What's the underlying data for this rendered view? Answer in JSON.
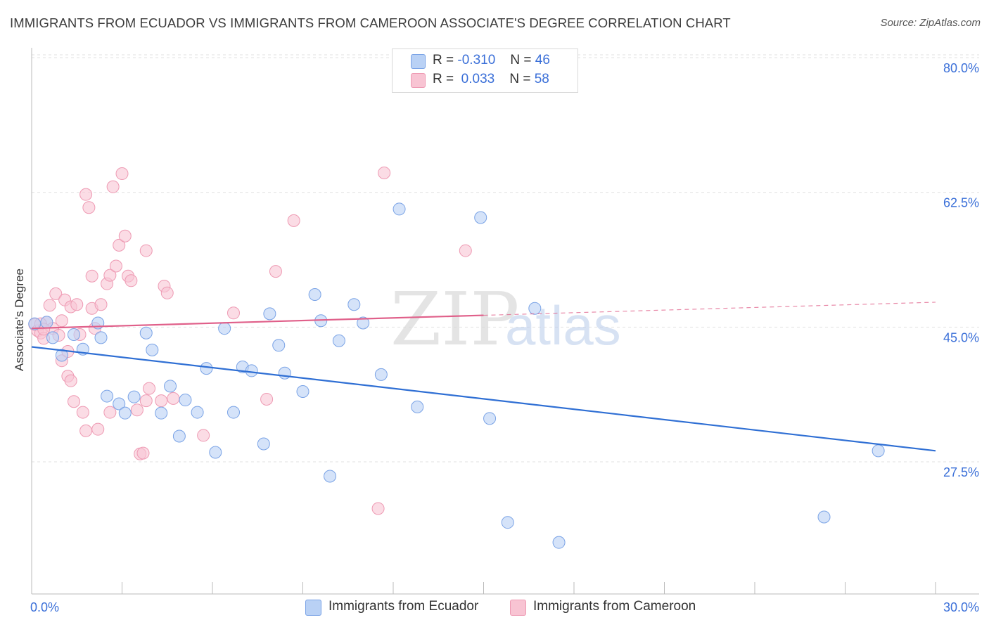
{
  "header": {
    "title": "IMMIGRANTS FROM ECUADOR VS IMMIGRANTS FROM CAMEROON ASSOCIATE'S DEGREE CORRELATION CHART",
    "source": "Source: ZipAtlas.com"
  },
  "watermark": {
    "zip": "ZIP",
    "atlas": "atlas"
  },
  "legend": {
    "rows": [
      {
        "r_label": "R =",
        "r_value": "-0.310",
        "n_label": "N =",
        "n_value": "46"
      },
      {
        "r_label": "R =",
        "r_value": "0.033",
        "n_label": "N =",
        "n_value": "58"
      }
    ]
  },
  "bottom_legend": {
    "series1": "Immigrants from Ecuador",
    "series2": "Immigrants from Cameroon"
  },
  "colors": {
    "ecuador_fill": "#b9d1f5",
    "ecuador_stroke": "#7aa3e6",
    "ecuador_line": "#2f6fd4",
    "cameroon_fill": "#f8c4d3",
    "cameroon_stroke": "#ee9ab3",
    "cameroon_line": "#e0608a",
    "tick_label": "#3a6fd8",
    "grid": "#e2e2e2"
  },
  "chart_data": {
    "type": "scatter",
    "title": "IMMIGRANTS FROM ECUADOR VS IMMIGRANTS FROM CAMEROON ASSOCIATE'S DEGREE CORRELATION CHART",
    "xlabel": "",
    "ylabel": "Associate's Degree",
    "xlim": [
      0,
      30
    ],
    "ylim": [
      12,
      83
    ],
    "x_tick_labels": [
      "0.0%",
      "30.0%"
    ],
    "y_ticks": [
      27.5,
      45.0,
      62.5,
      80.0
    ],
    "y_tick_labels": [
      "27.5%",
      "45.0%",
      "62.5%",
      "80.0%"
    ],
    "grid": true,
    "legend_position": "top-center",
    "series": [
      {
        "name": "Immigrants from Ecuador",
        "r": -0.31,
        "n": 46,
        "trend": {
          "x": [
            0,
            30
          ],
          "y": [
            43.8,
            30.3
          ]
        },
        "points": [
          [
            0.1,
            46.8
          ],
          [
            0.5,
            47.0
          ],
          [
            0.7,
            45.0
          ],
          [
            1.0,
            42.7
          ],
          [
            1.4,
            45.4
          ],
          [
            1.7,
            43.5
          ],
          [
            2.2,
            46.9
          ],
          [
            2.3,
            45.0
          ],
          [
            2.5,
            37.4
          ],
          [
            2.9,
            36.4
          ],
          [
            3.1,
            35.2
          ],
          [
            3.4,
            37.3
          ],
          [
            3.8,
            45.6
          ],
          [
            4.0,
            43.4
          ],
          [
            4.3,
            35.2
          ],
          [
            4.6,
            38.7
          ],
          [
            4.9,
            32.2
          ],
          [
            5.1,
            36.9
          ],
          [
            5.5,
            35.3
          ],
          [
            5.8,
            41.0
          ],
          [
            6.1,
            30.1
          ],
          [
            6.4,
            46.2
          ],
          [
            6.7,
            35.3
          ],
          [
            7.0,
            41.2
          ],
          [
            7.3,
            40.7
          ],
          [
            7.7,
            31.2
          ],
          [
            7.9,
            48.1
          ],
          [
            8.2,
            44.0
          ],
          [
            8.4,
            40.4
          ],
          [
            9.0,
            38.0
          ],
          [
            9.4,
            50.6
          ],
          [
            9.6,
            47.2
          ],
          [
            9.9,
            27.0
          ],
          [
            10.2,
            44.6
          ],
          [
            10.7,
            49.3
          ],
          [
            11.0,
            46.9
          ],
          [
            11.6,
            40.2
          ],
          [
            12.2,
            61.7
          ],
          [
            12.8,
            36.0
          ],
          [
            14.9,
            60.6
          ],
          [
            15.2,
            34.5
          ],
          [
            15.8,
            21.0
          ],
          [
            16.7,
            48.8
          ],
          [
            17.5,
            18.4
          ],
          [
            26.3,
            21.7
          ],
          [
            28.1,
            30.3
          ]
        ]
      },
      {
        "name": "Immigrants from Cameroon",
        "r": 0.033,
        "n": 58,
        "trend": {
          "x": [
            0,
            15
          ],
          "y": [
            46.2,
            47.9
          ],
          "dashed_to": {
            "x": 30,
            "y": 49.6
          }
        },
        "points": [
          [
            0.1,
            46.7
          ],
          [
            0.2,
            45.9
          ],
          [
            0.3,
            45.6
          ],
          [
            0.4,
            44.9
          ],
          [
            0.5,
            47.0
          ],
          [
            0.6,
            49.2
          ],
          [
            0.7,
            46.2
          ],
          [
            0.8,
            50.7
          ],
          [
            0.9,
            45.3
          ],
          [
            1.0,
            47.2
          ],
          [
            1.0,
            42.0
          ],
          [
            1.1,
            49.9
          ],
          [
            1.2,
            40.0
          ],
          [
            1.3,
            39.4
          ],
          [
            1.3,
            49.0
          ],
          [
            1.4,
            36.7
          ],
          [
            1.5,
            49.3
          ],
          [
            1.6,
            45.4
          ],
          [
            1.7,
            35.3
          ],
          [
            1.8,
            32.9
          ],
          [
            1.8,
            63.6
          ],
          [
            1.9,
            61.9
          ],
          [
            2.0,
            53.0
          ],
          [
            2.0,
            48.8
          ],
          [
            2.1,
            46.2
          ],
          [
            2.2,
            33.1
          ],
          [
            2.3,
            49.3
          ],
          [
            2.5,
            52.0
          ],
          [
            2.6,
            53.1
          ],
          [
            2.6,
            35.3
          ],
          [
            2.7,
            64.6
          ],
          [
            2.8,
            54.3
          ],
          [
            2.9,
            57.0
          ],
          [
            3.0,
            66.3
          ],
          [
            3.1,
            58.2
          ],
          [
            3.2,
            53.0
          ],
          [
            3.3,
            52.4
          ],
          [
            3.5,
            35.6
          ],
          [
            3.6,
            29.9
          ],
          [
            3.7,
            30.0
          ],
          [
            3.8,
            36.8
          ],
          [
            3.8,
            56.3
          ],
          [
            3.9,
            38.4
          ],
          [
            4.3,
            36.8
          ],
          [
            4.4,
            51.7
          ],
          [
            4.5,
            50.8
          ],
          [
            4.7,
            37.1
          ],
          [
            5.7,
            32.3
          ],
          [
            6.7,
            48.2
          ],
          [
            7.8,
            37.0
          ],
          [
            8.1,
            53.6
          ],
          [
            8.7,
            60.2
          ],
          [
            11.5,
            22.8
          ],
          [
            11.7,
            66.4
          ],
          [
            14.4,
            56.3
          ],
          [
            0.3,
            46.8
          ],
          [
            0.4,
            46.1
          ],
          [
            1.2,
            43.2
          ]
        ]
      }
    ]
  }
}
